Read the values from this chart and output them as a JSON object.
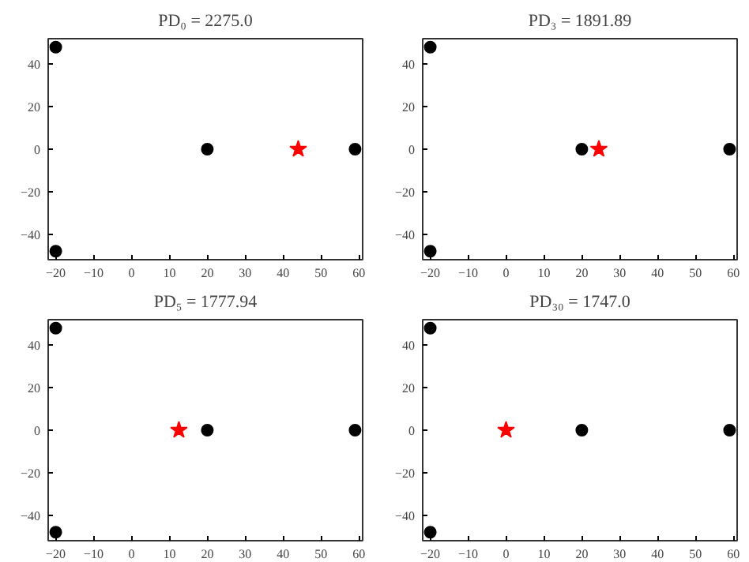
{
  "chart_data": [
    {
      "type": "scatter",
      "title": "PD₀ = 2275.0",
      "xlim": [
        -22,
        61
      ],
      "ylim": [
        -52,
        52
      ],
      "xticks": [
        -20,
        -10,
        0,
        10,
        20,
        30,
        40,
        50,
        60
      ],
      "yticks": [
        -40,
        -20,
        0,
        20,
        40
      ],
      "grid": false,
      "series": [
        {
          "color": "#000000",
          "marker": "circle",
          "x": [
            -20,
            -20,
            20,
            59
          ],
          "values": [
            48,
            -48,
            0,
            0
          ]
        },
        {
          "color": "#ff0000",
          "marker": "star",
          "x": [
            44
          ],
          "values": [
            0
          ]
        }
      ]
    },
    {
      "type": "scatter",
      "title": "PD₃ = 1891.89",
      "xlim": [
        -22,
        61
      ],
      "ylim": [
        -52,
        52
      ],
      "xticks": [
        -20,
        -10,
        0,
        10,
        20,
        30,
        40,
        50,
        60
      ],
      "yticks": [
        -40,
        -20,
        0,
        20,
        40
      ],
      "grid": false,
      "series": [
        {
          "color": "#000000",
          "marker": "circle",
          "x": [
            -20,
            -20,
            20,
            59
          ],
          "values": [
            48,
            -48,
            0,
            0
          ]
        },
        {
          "color": "#ff0000",
          "marker": "star",
          "x": [
            24.5
          ],
          "values": [
            0
          ]
        }
      ]
    },
    {
      "type": "scatter",
      "title": "PD₅ = 1777.94",
      "xlim": [
        -22,
        61
      ],
      "ylim": [
        -52,
        52
      ],
      "xticks": [
        -20,
        -10,
        0,
        10,
        20,
        30,
        40,
        50,
        60
      ],
      "yticks": [
        -40,
        -20,
        0,
        20,
        40
      ],
      "grid": false,
      "series": [
        {
          "color": "#000000",
          "marker": "circle",
          "x": [
            -20,
            -20,
            20,
            59
          ],
          "values": [
            48,
            -48,
            0,
            0
          ]
        },
        {
          "color": "#ff0000",
          "marker": "star",
          "x": [
            12.5
          ],
          "values": [
            0
          ]
        }
      ]
    },
    {
      "type": "scatter",
      "title": "PD₃₀ = 1747.0",
      "xlim": [
        -22,
        61
      ],
      "ylim": [
        -52,
        52
      ],
      "xticks": [
        -20,
        -10,
        0,
        10,
        20,
        30,
        40,
        50,
        60
      ],
      "yticks": [
        -40,
        -20,
        0,
        20,
        40
      ],
      "grid": false,
      "series": [
        {
          "color": "#000000",
          "marker": "circle",
          "x": [
            -20,
            -20,
            20,
            59
          ],
          "values": [
            48,
            -48,
            0,
            0
          ]
        },
        {
          "color": "#ff0000",
          "marker": "star",
          "x": [
            0
          ],
          "values": [
            0
          ]
        }
      ]
    }
  ]
}
